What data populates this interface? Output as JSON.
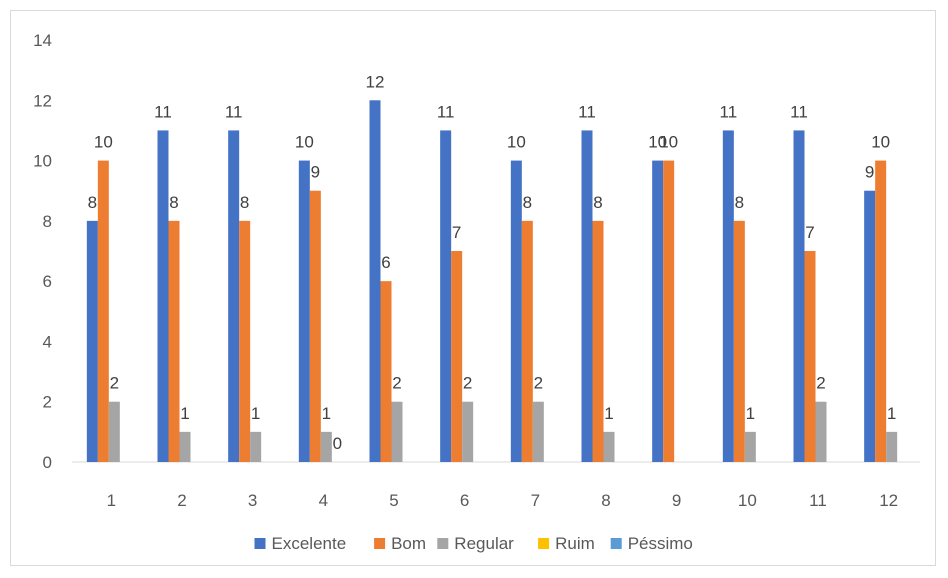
{
  "chart_data": {
    "type": "bar",
    "title": "",
    "xlabel": "",
    "ylabel": "",
    "categories": [
      "1",
      "2",
      "3",
      "4",
      "5",
      "6",
      "7",
      "8",
      "9",
      "10",
      "11",
      "12"
    ],
    "ylim": [
      0,
      14
    ],
    "yticks": [
      0,
      2,
      4,
      6,
      8,
      10,
      12,
      14
    ],
    "grid": false,
    "legend_position": "bottom",
    "series": [
      {
        "name": "Excelente",
        "color": "#4472C4",
        "values": [
          8,
          11,
          11,
          10,
          12,
          11,
          10,
          11,
          10,
          11,
          11,
          9
        ]
      },
      {
        "name": "Bom",
        "color": "#ED7D31",
        "values": [
          10,
          8,
          8,
          9,
          6,
          7,
          8,
          8,
          10,
          8,
          7,
          10
        ]
      },
      {
        "name": "Regular",
        "color": "#A5A5A5",
        "values": [
          2,
          1,
          1,
          1,
          2,
          2,
          2,
          1,
          null,
          1,
          2,
          1
        ]
      },
      {
        "name": "Ruim",
        "color": "#FFC000",
        "values": [
          null,
          null,
          null,
          0,
          null,
          null,
          null,
          null,
          null,
          null,
          null,
          null
        ]
      },
      {
        "name": "Péssimo",
        "color": "#5B9BD5",
        "values": [
          null,
          null,
          null,
          null,
          null,
          null,
          null,
          null,
          null,
          null,
          null,
          null
        ]
      }
    ]
  }
}
